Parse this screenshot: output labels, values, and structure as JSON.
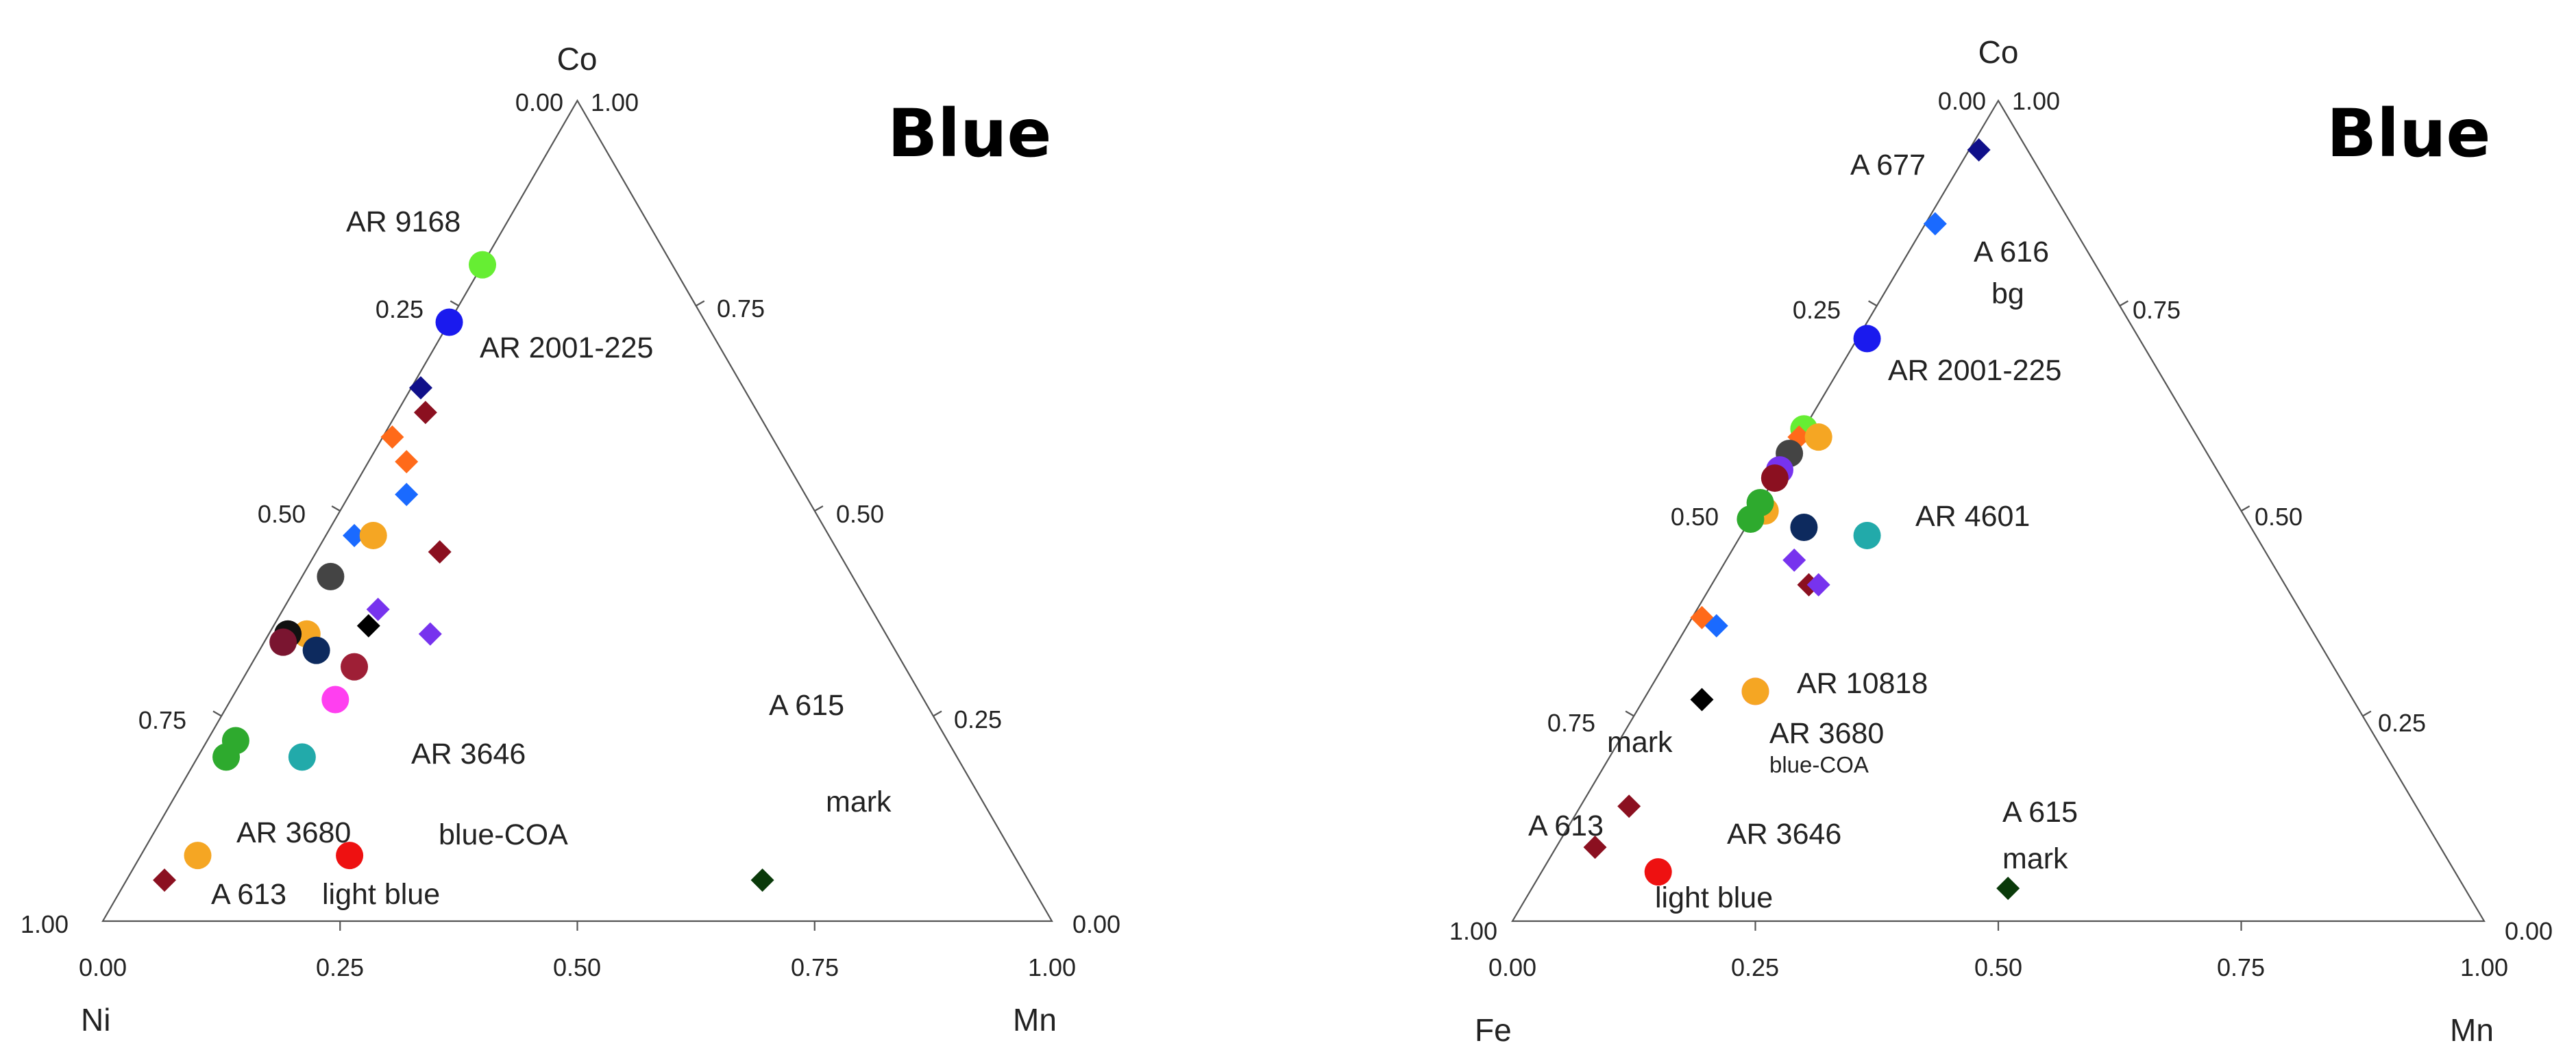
{
  "chart_data": [
    {
      "type": "ternary-scatter",
      "title": "Blue",
      "vertices": {
        "bottom_left": "Ni",
        "bottom_right": "Mn",
        "top": "Co"
      },
      "tick_labels": {
        "bottom": [
          "0.00",
          "0.25",
          "0.50",
          "0.75",
          "1.00"
        ],
        "left": [
          "1.00",
          "0.75",
          "0.50",
          "0.25",
          "0.00"
        ],
        "right": [
          "0.00",
          "0.25",
          "0.50",
          "0.75",
          "1.00"
        ]
      },
      "points": [
        {
          "ni": 0.2,
          "mn": 0.0,
          "co": 0.8,
          "color": "#66ee33",
          "marker": "circle"
        },
        {
          "ni": 0.27,
          "mn": 0.0,
          "co": 0.73,
          "color": "#1a1aee",
          "marker": "circle"
        },
        {
          "ni": 0.34,
          "mn": 0.01,
          "co": 0.65,
          "color": "#10108a",
          "marker": "diamond"
        },
        {
          "ni": 0.35,
          "mn": 0.03,
          "co": 0.62,
          "color": "#8b1020",
          "marker": "diamond"
        },
        {
          "ni": 0.4,
          "mn": 0.01,
          "co": 0.59,
          "color": "#ff6a1a",
          "marker": "diamond"
        },
        {
          "ni": 0.4,
          "mn": 0.04,
          "co": 0.56,
          "color": "#ff6a1a",
          "marker": "diamond"
        },
        {
          "ni": 0.42,
          "mn": 0.06,
          "co": 0.52,
          "color": "#1a6aff",
          "marker": "diamond"
        },
        {
          "ni": 0.5,
          "mn": 0.03,
          "co": 0.47,
          "color": "#1a6aff",
          "marker": "diamond"
        },
        {
          "ni": 0.48,
          "mn": 0.05,
          "co": 0.47,
          "color": "#f5a623",
          "marker": "circle"
        },
        {
          "ni": 0.42,
          "mn": 0.13,
          "co": 0.45,
          "color": "#8b1020",
          "marker": "diamond"
        },
        {
          "ni": 0.55,
          "mn": 0.03,
          "co": 0.42,
          "color": "#444444",
          "marker": "circle"
        },
        {
          "ni": 0.48,
          "mn": 0.17,
          "co": 0.35,
          "color": "#7733ee",
          "marker": "diamond"
        },
        {
          "ni": 0.52,
          "mn": 0.1,
          "co": 0.38,
          "color": "#7733ee",
          "marker": "diamond"
        },
        {
          "ni": 0.54,
          "mn": 0.1,
          "co": 0.36,
          "color": "#000000",
          "marker": "diamond"
        },
        {
          "ni": 0.61,
          "mn": 0.04,
          "co": 0.35,
          "color": "#f5a623",
          "marker": "circle"
        },
        {
          "ni": 0.63,
          "mn": 0.02,
          "co": 0.35,
          "color": "#111111",
          "marker": "circle"
        },
        {
          "ni": 0.64,
          "mn": 0.02,
          "co": 0.34,
          "color": "#7a1530",
          "marker": "circle"
        },
        {
          "ni": 0.61,
          "mn": 0.06,
          "co": 0.33,
          "color": "#0d2a5e",
          "marker": "circle"
        },
        {
          "ni": 0.58,
          "mn": 0.11,
          "co": 0.31,
          "color": "#9e1f36",
          "marker": "circle"
        },
        {
          "ni": 0.62,
          "mn": 0.11,
          "co": 0.27,
          "color": "#ff3ff0",
          "marker": "circle"
        },
        {
          "ni": 0.75,
          "mn": 0.03,
          "co": 0.22,
          "color": "#2eaa2e",
          "marker": "circle"
        },
        {
          "ni": 0.77,
          "mn": 0.03,
          "co": 0.2,
          "color": "#2eaa2e",
          "marker": "circle"
        },
        {
          "ni": 0.69,
          "mn": 0.11,
          "co": 0.2,
          "color": "#22aaaa",
          "marker": "circle"
        },
        {
          "ni": 0.7,
          "mn": 0.22,
          "co": 0.08,
          "color": "#ee1111",
          "marker": "circle"
        },
        {
          "ni": 0.28,
          "mn": 0.67,
          "co": 0.05,
          "color": "#0a3a0a",
          "marker": "diamond"
        },
        {
          "ni": 0.86,
          "mn": 0.06,
          "co": 0.08,
          "color": "#f5a623",
          "marker": "circle"
        },
        {
          "ni": 0.91,
          "mn": 0.04,
          "co": 0.05,
          "color": "#8b1020",
          "marker": "diamond"
        }
      ],
      "annotations": [
        {
          "text": "AR 9168",
          "kind": "normal"
        },
        {
          "text": "AR 2001-225",
          "kind": "normal"
        },
        {
          "text": "A 615",
          "kind": "normal"
        },
        {
          "text": "mark",
          "kind": "normal"
        },
        {
          "text": "AR 3646",
          "kind": "normal"
        },
        {
          "text": "AR 3680",
          "kind": "normal"
        },
        {
          "text": "blue-COA",
          "kind": "normal"
        },
        {
          "text": "A 613",
          "kind": "normal"
        },
        {
          "text": "light blue",
          "kind": "normal"
        }
      ]
    },
    {
      "type": "ternary-scatter",
      "title": "Blue",
      "vertices": {
        "bottom_left": "Fe",
        "bottom_right": "Mn",
        "top": "Co"
      },
      "tick_labels": {
        "bottom": [
          "0.00",
          "0.25",
          "0.50",
          "0.75",
          "1.00"
        ],
        "left": [
          "1.00",
          "0.75",
          "0.50",
          "0.25",
          "0.00"
        ],
        "right": [
          "0.00",
          "0.25",
          "0.50",
          "0.75",
          "1.00"
        ]
      },
      "points": [
        {
          "fe": 0.05,
          "mn": 0.01,
          "co": 0.94,
          "color": "#10108a",
          "marker": "diamond"
        },
        {
          "fe": 0.14,
          "mn": 0.01,
          "co": 0.85,
          "color": "#1a6aff",
          "marker": "diamond"
        },
        {
          "fe": 0.28,
          "mn": 0.01,
          "co": 0.71,
          "color": "#1a1aee",
          "marker": "circle"
        },
        {
          "fe": 0.4,
          "mn": 0.0,
          "co": 0.6,
          "color": "#66ee33",
          "marker": "circle"
        },
        {
          "fe": 0.41,
          "mn": 0.0,
          "co": 0.59,
          "color": "#ff6a1a",
          "marker": "diamond"
        },
        {
          "fe": 0.39,
          "mn": 0.02,
          "co": 0.59,
          "color": "#f5a623",
          "marker": "circle"
        },
        {
          "fe": 0.43,
          "mn": 0.0,
          "co": 0.57,
          "color": "#444444",
          "marker": "circle"
        },
        {
          "fe": 0.45,
          "mn": 0.0,
          "co": 0.55,
          "color": "#7733ee",
          "marker": "circle"
        },
        {
          "fe": 0.46,
          "mn": 0.0,
          "co": 0.54,
          "color": "#8b1020",
          "marker": "circle"
        },
        {
          "fe": 0.49,
          "mn": 0.01,
          "co": 0.5,
          "color": "#f5a623",
          "marker": "circle"
        },
        {
          "fe": 0.49,
          "mn": 0.0,
          "co": 0.51,
          "color": "#2eaa2e",
          "marker": "circle"
        },
        {
          "fe": 0.51,
          "mn": 0.0,
          "co": 0.49,
          "color": "#2eaa2e",
          "marker": "circle"
        },
        {
          "fe": 0.46,
          "mn": 0.06,
          "co": 0.48,
          "color": "#0d2a5e",
          "marker": "circle"
        },
        {
          "fe": 0.4,
          "mn": 0.13,
          "co": 0.47,
          "color": "#22aaaa",
          "marker": "circle"
        },
        {
          "fe": 0.49,
          "mn": 0.07,
          "co": 0.44,
          "color": "#7733ee",
          "marker": "diamond"
        },
        {
          "fe": 0.49,
          "mn": 0.1,
          "co": 0.41,
          "color": "#8b1020",
          "marker": "diamond"
        },
        {
          "fe": 0.48,
          "mn": 0.11,
          "co": 0.41,
          "color": "#7733ee",
          "marker": "diamond"
        },
        {
          "fe": 0.62,
          "mn": 0.01,
          "co": 0.37,
          "color": "#ff6a1a",
          "marker": "diamond"
        },
        {
          "fe": 0.61,
          "mn": 0.03,
          "co": 0.36,
          "color": "#1a6aff",
          "marker": "diamond"
        },
        {
          "fe": 0.61,
          "mn": 0.11,
          "co": 0.28,
          "color": "#ff3ff0",
          "marker": "circle"
        },
        {
          "fe": 0.61,
          "mn": 0.11,
          "co": 0.28,
          "color": "#f5a623",
          "marker": "circle"
        },
        {
          "fe": 0.67,
          "mn": 0.06,
          "co": 0.27,
          "color": "#000000",
          "marker": "diamond"
        },
        {
          "fe": 0.81,
          "mn": 0.05,
          "co": 0.14,
          "color": "#8b1020",
          "marker": "diamond"
        },
        {
          "fe": 0.82,
          "mn": 0.12,
          "co": 0.06,
          "color": "#ee1111",
          "marker": "circle"
        },
        {
          "fe": 0.47,
          "mn": 0.49,
          "co": 0.04,
          "color": "#0a3a0a",
          "marker": "diamond"
        },
        {
          "fe": 0.87,
          "mn": 0.04,
          "co": 0.09,
          "color": "#8b1020",
          "marker": "diamond"
        }
      ],
      "annotations": [
        {
          "text": "A 677",
          "kind": "normal"
        },
        {
          "text": "A 616",
          "kind": "normal"
        },
        {
          "text": "bg",
          "kind": "normal"
        },
        {
          "text": "AR 2001-225",
          "kind": "normal"
        },
        {
          "text": "AR 4601",
          "kind": "normal"
        },
        {
          "text": "AR 10818",
          "kind": "normal"
        },
        {
          "text": "AR 3680",
          "kind": "normal"
        },
        {
          "text": "blue-COA",
          "kind": "small"
        },
        {
          "text": "mark",
          "kind": "normal"
        },
        {
          "text": "A 613",
          "kind": "normal"
        },
        {
          "text": "AR 3646",
          "kind": "normal"
        },
        {
          "text": "A 615",
          "kind": "normal"
        },
        {
          "text": "mark",
          "kind": "normal"
        },
        {
          "text": "light blue",
          "kind": "normal"
        }
      ]
    }
  ]
}
